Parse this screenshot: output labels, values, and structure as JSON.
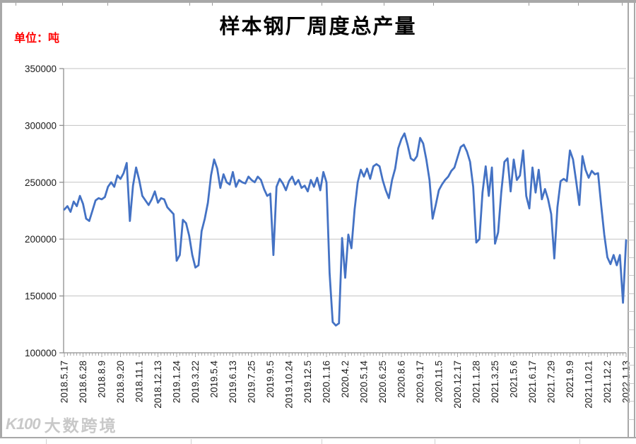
{
  "header": {
    "title": "样本钢厂周度总产量",
    "unit_label": "单位：吨"
  },
  "watermark": {
    "logo": "K100",
    "text": "大数跨境"
  },
  "chart_data": {
    "type": "line",
    "title": "样本钢厂周度总产量",
    "unit": "吨",
    "xlabel": "",
    "ylabel": "",
    "legend": "none",
    "grid": "horizontal",
    "series_name": "样本钢厂周度总产量",
    "series_color": "#4472C4",
    "line_width": 2.8,
    "ylim": [
      100000,
      350000
    ],
    "ytick_interval": 50000,
    "yticks": [
      100000,
      150000,
      200000,
      250000,
      300000,
      350000
    ],
    "label_every_n_points": 6,
    "x_labels": [
      "2018.5.17",
      "2018.6.28",
      "2018.8.9",
      "2018.9.20",
      "2018.11.1",
      "2018.12.13",
      "2019.1.24",
      "2019.3.22",
      "2019.5.4",
      "2019.6.13",
      "2019.7.25",
      "2019.9.5",
      "2019.10.24",
      "2019.12.5",
      "2020.1.16",
      "2020.4.2",
      "2020.5.14",
      "2020.6.25",
      "2020.8.6",
      "2020.9.17",
      "2020.11.5",
      "2020.12.17",
      "2021.1.28",
      "2021.3.25",
      "2021.5.6",
      "2021.6.17",
      "2021.7.29",
      "2021.9.9",
      "2021.10.21",
      "2021.12.2",
      "2022.1.13"
    ],
    "values": [
      226000,
      229000,
      224000,
      233000,
      229000,
      238000,
      231000,
      218000,
      216000,
      225000,
      234000,
      236000,
      235000,
      237000,
      246000,
      250000,
      246000,
      256000,
      253000,
      258000,
      267000,
      216000,
      247000,
      263000,
      252000,
      238000,
      234000,
      230000,
      235000,
      242000,
      232000,
      236000,
      235000,
      228000,
      225000,
      222000,
      181000,
      186000,
      217000,
      214000,
      203000,
      186000,
      175000,
      177000,
      207000,
      218000,
      232000,
      256000,
      270000,
      262000,
      245000,
      257000,
      250000,
      248000,
      259000,
      246000,
      252000,
      250000,
      249000,
      255000,
      252000,
      250000,
      255000,
      252000,
      244000,
      238000,
      240000,
      186000,
      246000,
      253000,
      249000,
      243000,
      251000,
      255000,
      248000,
      252000,
      245000,
      247000,
      242000,
      252000,
      246000,
      254000,
      243000,
      259000,
      250000,
      170000,
      127000,
      124000,
      126000,
      201000,
      166000,
      204000,
      192000,
      226000,
      250000,
      261000,
      255000,
      262000,
      253000,
      264000,
      266000,
      264000,
      252000,
      243000,
      236000,
      252000,
      262000,
      280000,
      288000,
      293000,
      283000,
      271000,
      269000,
      273000,
      289000,
      284000,
      270000,
      252000,
      218000,
      230000,
      243000,
      248000,
      252000,
      255000,
      260000,
      263000,
      272000,
      281000,
      283000,
      277000,
      268000,
      246000,
      197000,
      200000,
      241000,
      264000,
      238000,
      263000,
      196000,
      206000,
      241000,
      268000,
      271000,
      242000,
      270000,
      252000,
      256000,
      278000,
      238000,
      227000,
      263000,
      241000,
      261000,
      235000,
      244000,
      235000,
      222000,
      183000,
      228000,
      251000,
      253000,
      251000,
      278000,
      270000,
      251000,
      230000,
      273000,
      261000,
      254000,
      260000,
      257000,
      258000,
      230000,
      204000,
      184000,
      178000,
      186000,
      177000,
      186000,
      144000,
      199000
    ]
  }
}
